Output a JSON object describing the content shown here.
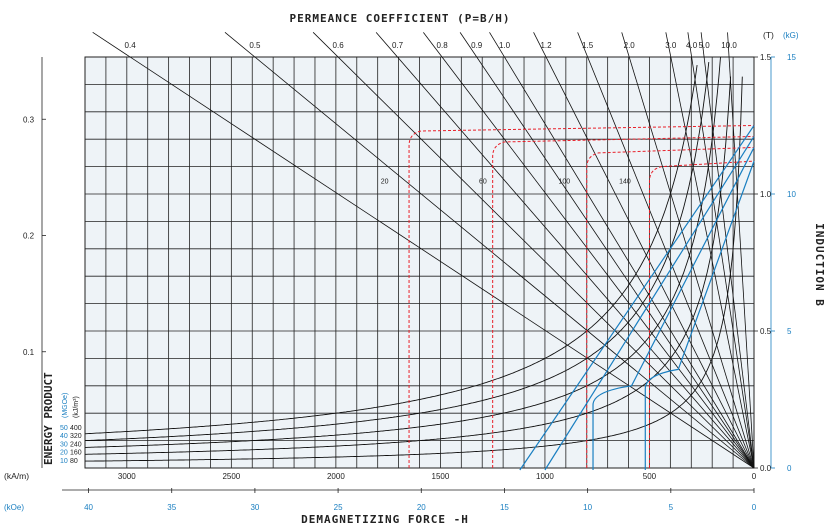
{
  "chart_data": {
    "type": "line",
    "title": "PERMEANCE COEFFICIENT (P=B/H)",
    "xlabel": "DEMAGNETIZING FORCE -H",
    "ylabel_right": "INDUCTION B",
    "ylabel_left": "ENERGY PRODUCT",
    "x_unit_primary": "(kA/m)",
    "x_unit_secondary": "(kOe)",
    "y_unit_T": "(T)",
    "y_unit_kG": "(kG)",
    "x_range_kAm": [
      3200,
      0
    ],
    "x_ticks_kAm": [
      "3000",
      "2500",
      "2000",
      "1500",
      "1000",
      "500",
      "0"
    ],
    "x_ticks_kOe": [
      "40",
      "35",
      "30",
      "25",
      "20",
      "15",
      "10",
      "5",
      "0"
    ],
    "y_range_T": [
      0,
      1.5
    ],
    "y_ticks_T": [
      "1.5",
      "1.0",
      "0.5",
      "0.0"
    ],
    "y_ticks_kG": [
      "15",
      "10",
      "5",
      "0"
    ],
    "left_ticks": [
      "0.3",
      "0.2",
      "0.1"
    ],
    "permeance_values": [
      0.4,
      0.5,
      0.6,
      0.7,
      0.8,
      0.9,
      1.0,
      1.2,
      1.5,
      2.0,
      3.0,
      4.0,
      5.0,
      10.0
    ],
    "permeance_labels": [
      "0.4",
      "0.5",
      "0.6",
      "0.7",
      "0.8",
      "0.9",
      "1.0",
      "1.2",
      "1.5",
      "2.0",
      "3.0",
      "4.0",
      "5.0",
      "10.0"
    ],
    "energy_curves_kJm3": [
      80,
      160,
      240,
      320,
      400
    ],
    "energy_legend_unit": "(kJ/m³)",
    "energy_legend_unit2": "(MGOe)",
    "energy_legend": [
      {
        "mgoe": "50",
        "kj": "400"
      },
      {
        "mgoe": "40",
        "kj": "320"
      },
      {
        "mgoe": "30",
        "kj": "240"
      },
      {
        "mgoe": "20",
        "kj": "160"
      },
      {
        "mgoe": "10",
        "kj": "80"
      }
    ],
    "temperature_labels": [
      "20",
      "60",
      "100",
      "140"
    ],
    "series_J": [
      {
        "name": "20",
        "Br": 1.25,
        "Hc_kAm": 1650
      },
      {
        "name": "60",
        "Br": 1.21,
        "Hc_kAm": 1250
      },
      {
        "name": "100",
        "Br": 1.17,
        "Hc_kAm": 800
      },
      {
        "name": "140",
        "Br": 1.12,
        "Hc_kAm": 500
      }
    ],
    "series_B": [
      {
        "Br": 1.25,
        "Hc_kAm": 1120
      },
      {
        "Br": 1.21,
        "Hc_kAm": 1000
      },
      {
        "Br": 1.17,
        "Hc_kAm": 770
      },
      {
        "Br": 1.12,
        "Hc_kAm": 520
      }
    ],
    "colors": {
      "grid": "#222222",
      "energy": "#111111",
      "J_curve": "#e8202a",
      "B_curve": "#1a7fc1",
      "blue_text": "#1a7fc1",
      "panel": "#eef3f7"
    }
  }
}
